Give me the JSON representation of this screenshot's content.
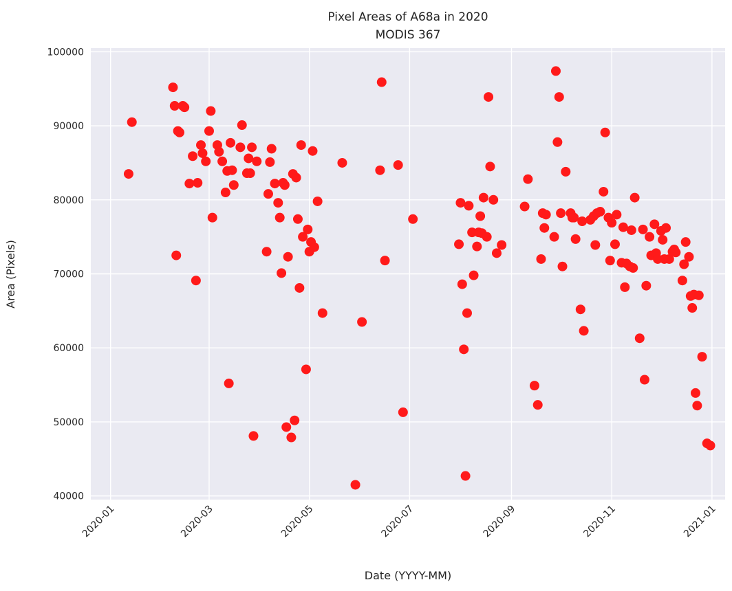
{
  "chart_data": {
    "type": "scatter",
    "title": "Pixel Areas of A68a in 2020",
    "subtitle": "MODIS 367",
    "xlabel": "Date (YYYY-MM)",
    "ylabel": "Area (Pixels)",
    "x_axis": "date",
    "xlim": [
      "2019-12-20",
      "2021-01-09"
    ],
    "ylim": [
      39500,
      100500
    ],
    "xticks": [
      "2020-01",
      "2020-03",
      "2020-05",
      "2020-07",
      "2020-09",
      "2020-11",
      "2021-01"
    ],
    "yticks": [
      40000,
      50000,
      60000,
      70000,
      80000,
      90000,
      100000
    ],
    "grid": true,
    "marker_color": "#ff1a1a",
    "background_color": "#eaeaf2",
    "series": [
      {
        "points": [
          [
            "2020-01-12",
            83500
          ],
          [
            "2020-01-14",
            90500
          ],
          [
            "2020-02-08",
            95200
          ],
          [
            "2020-02-09",
            92700
          ],
          [
            "2020-02-10",
            72500
          ],
          [
            "2020-02-11",
            89300
          ],
          [
            "2020-02-12",
            89100
          ],
          [
            "2020-02-14",
            92700
          ],
          [
            "2020-02-15",
            92500
          ],
          [
            "2020-02-18",
            82200
          ],
          [
            "2020-02-20",
            85900
          ],
          [
            "2020-02-22",
            69100
          ],
          [
            "2020-02-23",
            82300
          ],
          [
            "2020-02-25",
            87400
          ],
          [
            "2020-02-26",
            86300
          ],
          [
            "2020-02-28",
            85200
          ],
          [
            "2020-03-01",
            89300
          ],
          [
            "2020-03-02",
            92000
          ],
          [
            "2020-03-03",
            77600
          ],
          [
            "2020-03-06",
            87400
          ],
          [
            "2020-03-07",
            86500
          ],
          [
            "2020-03-09",
            85200
          ],
          [
            "2020-03-11",
            81000
          ],
          [
            "2020-03-12",
            83900
          ],
          [
            "2020-03-13",
            55200
          ],
          [
            "2020-03-14",
            87700
          ],
          [
            "2020-03-15",
            84000
          ],
          [
            "2020-03-16",
            82000
          ],
          [
            "2020-03-20",
            87100
          ],
          [
            "2020-03-21",
            90100
          ],
          [
            "2020-03-24",
            83600
          ],
          [
            "2020-03-25",
            85600
          ],
          [
            "2020-03-26",
            83600
          ],
          [
            "2020-03-27",
            87100
          ],
          [
            "2020-03-28",
            48100
          ],
          [
            "2020-03-30",
            85200
          ],
          [
            "2020-04-05",
            73000
          ],
          [
            "2020-04-06",
            80800
          ],
          [
            "2020-04-07",
            85100
          ],
          [
            "2020-04-08",
            86900
          ],
          [
            "2020-04-10",
            82200
          ],
          [
            "2020-04-12",
            79600
          ],
          [
            "2020-04-13",
            77600
          ],
          [
            "2020-04-14",
            70100
          ],
          [
            "2020-04-15",
            82300
          ],
          [
            "2020-04-16",
            82000
          ],
          [
            "2020-04-17",
            49300
          ],
          [
            "2020-04-18",
            72300
          ],
          [
            "2020-04-20",
            47900
          ],
          [
            "2020-04-21",
            83500
          ],
          [
            "2020-04-22",
            50200
          ],
          [
            "2020-04-23",
            83000
          ],
          [
            "2020-04-24",
            77400
          ],
          [
            "2020-04-25",
            68100
          ],
          [
            "2020-04-26",
            87400
          ],
          [
            "2020-04-27",
            75000
          ],
          [
            "2020-04-29",
            57100
          ],
          [
            "2020-04-30",
            76000
          ],
          [
            "2020-05-01",
            73000
          ],
          [
            "2020-05-02",
            74300
          ],
          [
            "2020-05-03",
            86600
          ],
          [
            "2020-05-04",
            73600
          ],
          [
            "2020-05-06",
            79800
          ],
          [
            "2020-05-09",
            64700
          ],
          [
            "2020-05-21",
            85000
          ],
          [
            "2020-05-29",
            41500
          ],
          [
            "2020-06-02",
            63500
          ],
          [
            "2020-06-13",
            84000
          ],
          [
            "2020-06-14",
            95900
          ],
          [
            "2020-06-16",
            71800
          ],
          [
            "2020-06-24",
            84700
          ],
          [
            "2020-06-27",
            51300
          ],
          [
            "2020-07-03",
            77400
          ],
          [
            "2020-07-31",
            74000
          ],
          [
            "2020-08-01",
            79600
          ],
          [
            "2020-08-02",
            68600
          ],
          [
            "2020-08-03",
            59800
          ],
          [
            "2020-08-04",
            42700
          ],
          [
            "2020-08-05",
            64700
          ],
          [
            "2020-08-06",
            79200
          ],
          [
            "2020-08-08",
            75600
          ],
          [
            "2020-08-09",
            69800
          ],
          [
            "2020-08-11",
            73700
          ],
          [
            "2020-08-12",
            75600
          ],
          [
            "2020-08-13",
            77800
          ],
          [
            "2020-08-14",
            75500
          ],
          [
            "2020-08-15",
            80300
          ],
          [
            "2020-08-17",
            75000
          ],
          [
            "2020-08-18",
            93900
          ],
          [
            "2020-08-19",
            84500
          ],
          [
            "2020-08-21",
            80000
          ],
          [
            "2020-08-23",
            72800
          ],
          [
            "2020-08-26",
            73900
          ],
          [
            "2020-09-09",
            79100
          ],
          [
            "2020-09-11",
            82800
          ],
          [
            "2020-09-15",
            54900
          ],
          [
            "2020-09-17",
            52300
          ],
          [
            "2020-09-19",
            72000
          ],
          [
            "2020-09-20",
            78200
          ],
          [
            "2020-09-21",
            76200
          ],
          [
            "2020-09-22",
            78000
          ],
          [
            "2020-09-27",
            75000
          ],
          [
            "2020-09-28",
            97400
          ],
          [
            "2020-09-29",
            87800
          ],
          [
            "2020-09-30",
            93900
          ],
          [
            "2020-10-01",
            78200
          ],
          [
            "2020-10-02",
            71000
          ],
          [
            "2020-10-04",
            83800
          ],
          [
            "2020-10-07",
            78200
          ],
          [
            "2020-10-08",
            77600
          ],
          [
            "2020-10-09",
            77600
          ],
          [
            "2020-10-10",
            74700
          ],
          [
            "2020-10-13",
            65200
          ],
          [
            "2020-10-14",
            77100
          ],
          [
            "2020-10-15",
            62300
          ],
          [
            "2020-10-19",
            77300
          ],
          [
            "2020-10-21",
            77800
          ],
          [
            "2020-10-22",
            73900
          ],
          [
            "2020-10-23",
            78200
          ],
          [
            "2020-10-25",
            78400
          ],
          [
            "2020-10-27",
            81100
          ],
          [
            "2020-10-28",
            89100
          ],
          [
            "2020-10-30",
            77600
          ],
          [
            "2020-10-31",
            71800
          ],
          [
            "2020-11-01",
            76900
          ],
          [
            "2020-11-03",
            74000
          ],
          [
            "2020-11-04",
            78000
          ],
          [
            "2020-11-07",
            71500
          ],
          [
            "2020-11-08",
            76300
          ],
          [
            "2020-11-09",
            68200
          ],
          [
            "2020-11-10",
            71400
          ],
          [
            "2020-11-12",
            71000
          ],
          [
            "2020-11-13",
            75900
          ],
          [
            "2020-11-14",
            70800
          ],
          [
            "2020-11-15",
            80300
          ],
          [
            "2020-11-18",
            61300
          ],
          [
            "2020-11-20",
            76000
          ],
          [
            "2020-11-21",
            55700
          ],
          [
            "2020-11-22",
            68400
          ],
          [
            "2020-11-24",
            75000
          ],
          [
            "2020-11-25",
            72500
          ],
          [
            "2020-11-27",
            76700
          ],
          [
            "2020-11-28",
            72800
          ],
          [
            "2020-11-29",
            72000
          ],
          [
            "2020-12-01",
            75800
          ],
          [
            "2020-12-02",
            74600
          ],
          [
            "2020-12-03",
            72000
          ],
          [
            "2020-12-04",
            76200
          ],
          [
            "2020-12-06",
            72000
          ],
          [
            "2020-12-08",
            73000
          ],
          [
            "2020-12-09",
            73300
          ],
          [
            "2020-12-10",
            72900
          ],
          [
            "2020-12-14",
            69100
          ],
          [
            "2020-12-15",
            71300
          ],
          [
            "2020-12-16",
            74300
          ],
          [
            "2020-12-18",
            72300
          ],
          [
            "2020-12-19",
            67000
          ],
          [
            "2020-12-20",
            65400
          ],
          [
            "2020-12-21",
            67200
          ],
          [
            "2020-12-22",
            53900
          ],
          [
            "2020-12-23",
            52200
          ],
          [
            "2020-12-24",
            67100
          ],
          [
            "2020-12-26",
            58800
          ],
          [
            "2020-12-29",
            47100
          ],
          [
            "2020-12-31",
            46800
          ]
        ]
      }
    ]
  }
}
